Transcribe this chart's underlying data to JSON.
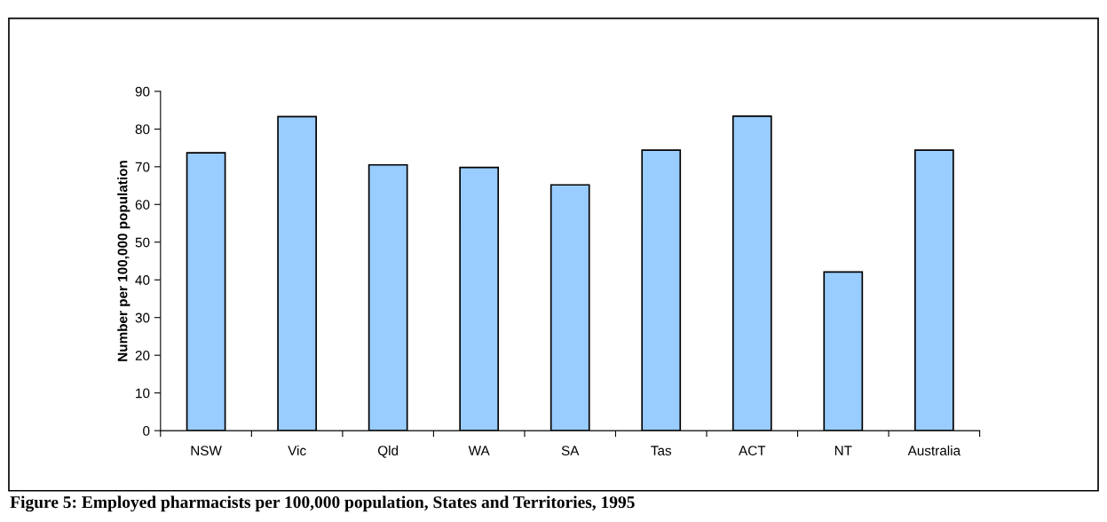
{
  "chart_data": {
    "type": "bar",
    "title": "Figure 5: Employed pharmacists per 100,000 population, States and Territories, 1995",
    "ylabel": "Number per 100,000 population",
    "categories": [
      "NSW",
      "Vic",
      "Qld",
      "WA",
      "SA",
      "Tas",
      "ACT",
      "NT",
      "Australia"
    ],
    "values": [
      73.7,
      83.3,
      70.5,
      69.8,
      65.2,
      74.4,
      83.4,
      42.1,
      74.4
    ],
    "color": "#99ccff",
    "ylim": [
      0,
      90
    ],
    "yticks": [
      0,
      10,
      20,
      30,
      40,
      50,
      60,
      70,
      80,
      90
    ],
    "grid": false
  }
}
